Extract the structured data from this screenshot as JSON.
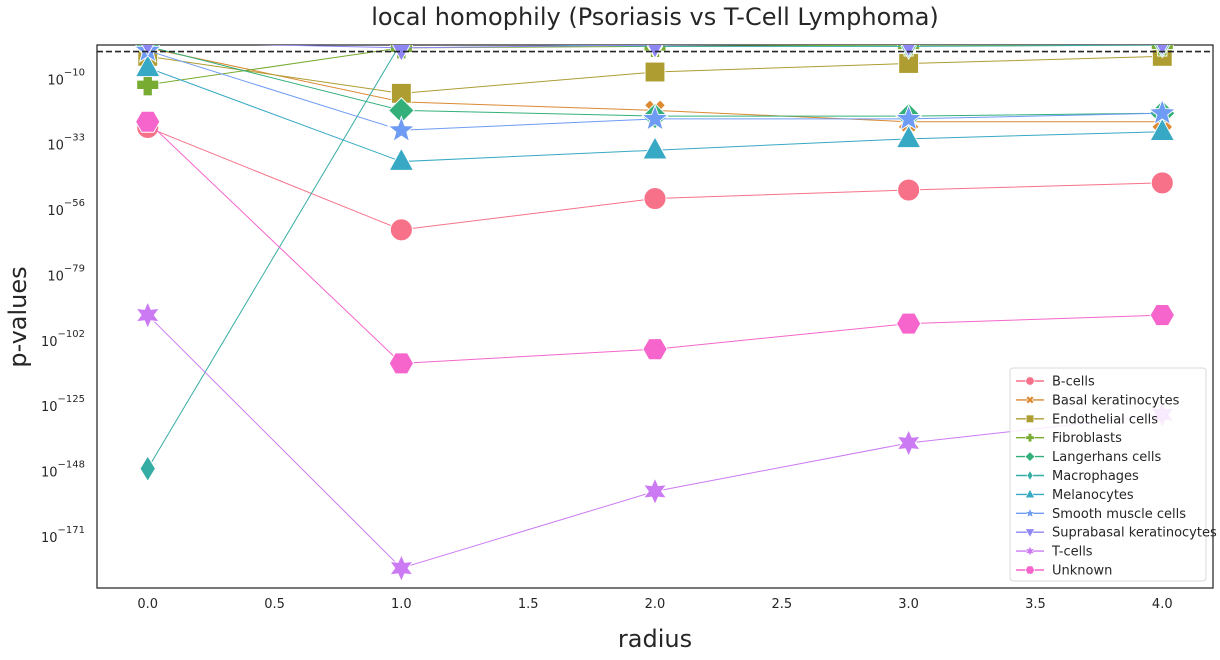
{
  "chart_data": {
    "type": "line",
    "title": "local homophily (Psoriasis vs T-Cell Lymphoma)",
    "xlabel": "radius",
    "ylabel": "p-values",
    "x": [
      0,
      1,
      2,
      3,
      4
    ],
    "xlim": [
      -0.2,
      4.2
    ],
    "x_ticks": [
      0,
      0.5,
      1,
      1.5,
      2,
      2.5,
      3,
      3.5,
      4
    ],
    "x_tick_labels": [
      "0.0",
      "0.5",
      "1.0",
      "1.5",
      "2.0",
      "2.5",
      "3.0",
      "3.5",
      "4.0"
    ],
    "y_scale": "log",
    "y_exponent_range": [
      -190,
      1
    ],
    "y_tick_exponents": [
      -10,
      -33,
      -56,
      -79,
      -102,
      -125,
      -148,
      -171
    ],
    "y_tick_base": "10",
    "y_tick_exps": [
      "−10",
      "−33",
      "−56",
      "−79",
      "−102",
      "−125",
      "−148",
      "−171"
    ],
    "reference_line": {
      "y_exponent": -1.3,
      "style": "dashed",
      "color": "#262626"
    },
    "grid": false,
    "legend_position": "lower-right",
    "series": [
      {
        "name": "B-cells",
        "marker": "circle",
        "color": "#f77189",
        "log10_values": [
          -28,
          -64,
          -53,
          -50,
          -47.5
        ]
      },
      {
        "name": "Basal keratinocytes",
        "marker": "x",
        "color": "#dc8932",
        "log10_values": [
          0,
          -19,
          -22,
          -26,
          -26
        ]
      },
      {
        "name": "Endothelial cells",
        "marker": "square",
        "color": "#ae9d31",
        "log10_values": [
          -3,
          -16,
          -8.5,
          -5.5,
          -3
        ]
      },
      {
        "name": "Fibroblasts",
        "marker": "plus",
        "color": "#77ab31",
        "log10_values": [
          -13,
          0,
          0.5,
          1,
          1
        ]
      },
      {
        "name": "Langerhans cells",
        "marker": "diamond",
        "color": "#33b07a",
        "log10_values": [
          0.5,
          -22,
          -24,
          -24,
          -23
        ]
      },
      {
        "name": "Macrophages",
        "marker": "thin_diamond",
        "color": "#36ada4",
        "log10_values": [
          -148,
          2,
          0.5,
          0.5,
          1
        ]
      },
      {
        "name": "Melanocytes",
        "marker": "triangle-up",
        "color": "#38a9c5",
        "log10_values": [
          -7,
          -40,
          -36,
          -32,
          -29.5
        ]
      },
      {
        "name": "Smooth muscle cells",
        "marker": "star",
        "color": "#6e9bf4",
        "log10_values": [
          -1,
          -29,
          -25,
          -25,
          -23
        ]
      },
      {
        "name": "Suprabasal keratinocytes",
        "marker": "triangle-down",
        "color": "#8e86f5",
        "log10_values": [
          2,
          0,
          1,
          1.5,
          2
        ]
      },
      {
        "name": "T-cells",
        "marker": "star6",
        "color": "#cc7af4",
        "log10_values": [
          -94,
          -183,
          -156,
          -139,
          -129
        ]
      },
      {
        "name": "Unknown",
        "marker": "hexagon",
        "color": "#f565cc",
        "log10_values": [
          -26,
          -111,
          -106,
          -97,
          -94
        ]
      }
    ]
  }
}
